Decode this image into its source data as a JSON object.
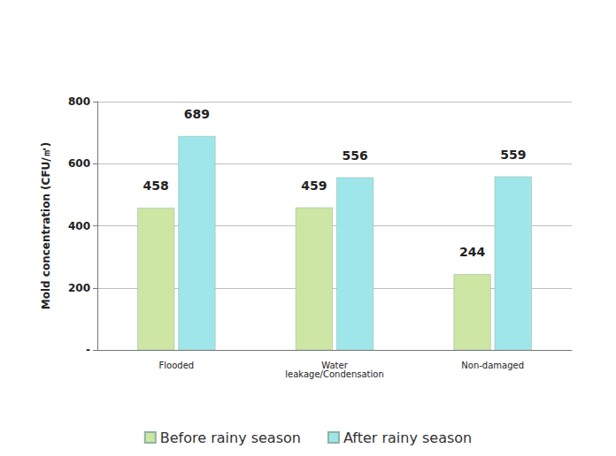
{
  "chart_data": {
    "type": "bar",
    "y_label": "Mold concentration (CFU/㎥)",
    "categories": [
      "Flooded",
      "Water leakage/Condensation",
      "Non-damaged"
    ],
    "series": [
      {
        "name": "Before rainy season",
        "color": "#cde6a4",
        "values": [
          458,
          459,
          244
        ]
      },
      {
        "name": "After rainy season",
        "color": "#9fe6ea",
        "values": [
          689,
          556,
          559
        ]
      }
    ],
    "ylim": [
      0,
      800
    ],
    "yticks": [
      {
        "value": 0,
        "label": "-"
      },
      200,
      400,
      600,
      800
    ],
    "grid": true,
    "legend": "bottom",
    "data_labels": true
  }
}
